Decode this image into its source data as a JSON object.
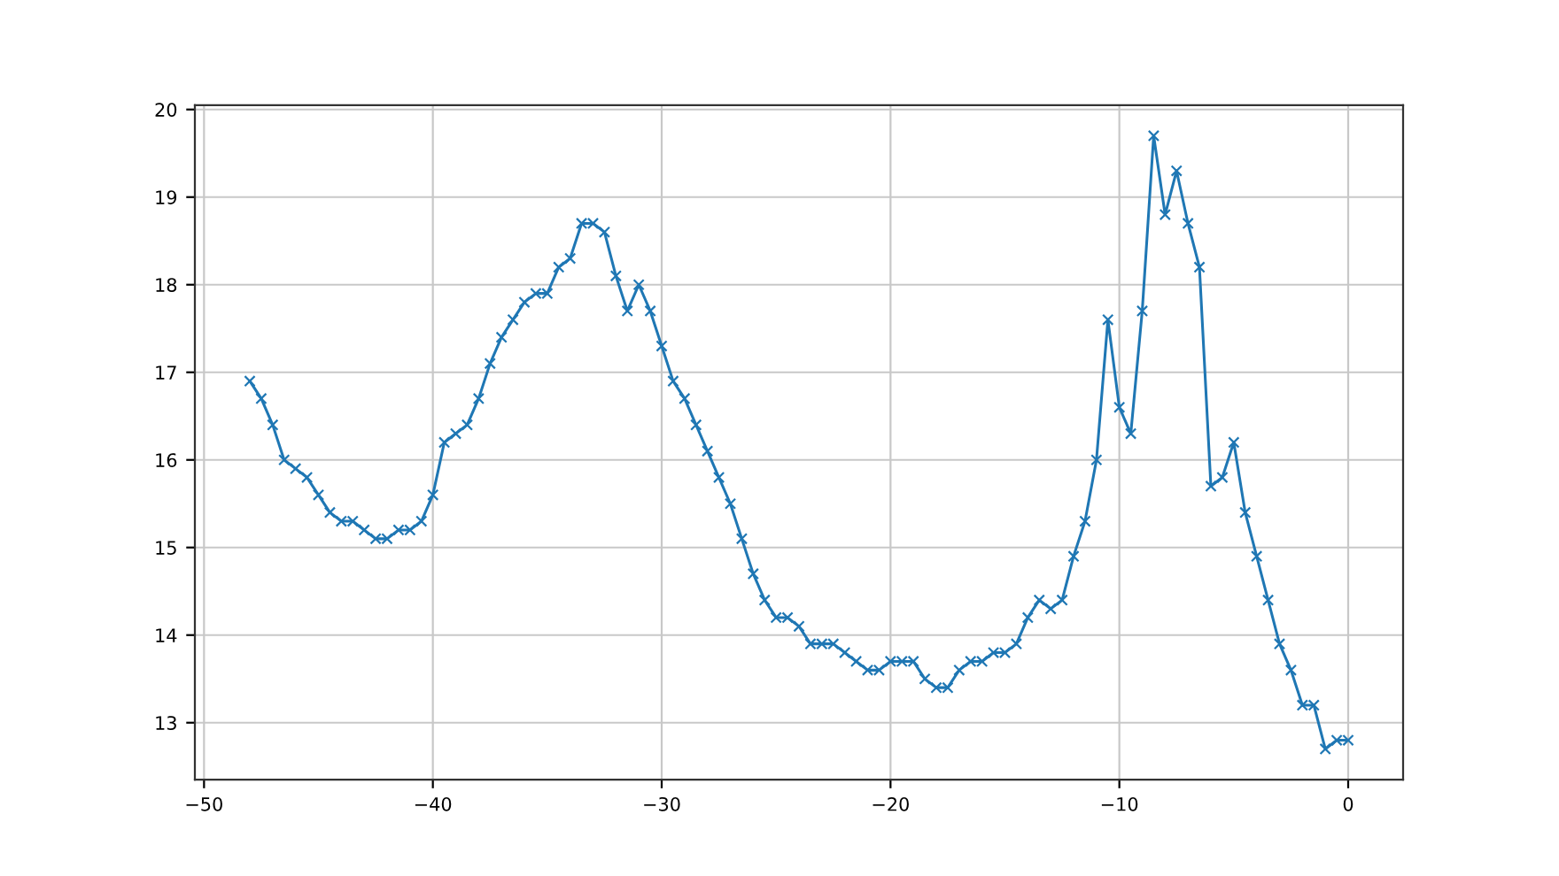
{
  "chart_data": {
    "type": "line",
    "x": [
      -48,
      -47.5,
      -47,
      -46.5,
      -46,
      -45.5,
      -45,
      -44.5,
      -44,
      -43.5,
      -43,
      -42.5,
      -42,
      -41.5,
      -41,
      -40.5,
      -40,
      -39.5,
      -39,
      -38.5,
      -38,
      -37.5,
      -37,
      -36.5,
      -36,
      -35.5,
      -35,
      -34.5,
      -34,
      -33.5,
      -33,
      -32.5,
      -32,
      -31.5,
      -31,
      -30.5,
      -30,
      -29.5,
      -29,
      -28.5,
      -28,
      -27.5,
      -27,
      -26.5,
      -26,
      -25.5,
      -25,
      -24.5,
      -24,
      -23.5,
      -23,
      -22.5,
      -22,
      -21.5,
      -21,
      -20.5,
      -20,
      -19.5,
      -19,
      -18.5,
      -18,
      -17.5,
      -17,
      -16.5,
      -16,
      -15.5,
      -15,
      -14.5,
      -14,
      -13.5,
      -13,
      -12.5,
      -12,
      -11.5,
      -11,
      -10.5,
      -10,
      -9.5,
      -9,
      -8.5,
      -8,
      -7.5,
      -7,
      -6.5,
      -6,
      -5.5,
      -5,
      -4.5,
      -4,
      -3.5,
      -3,
      -2.5,
      -2,
      -1.5,
      -1,
      -0.5,
      0
    ],
    "series": [
      {
        "color": "#1f77b4",
        "values": [
          16.9,
          16.7,
          16.4,
          16.0,
          15.9,
          15.8,
          15.6,
          15.4,
          15.3,
          15.3,
          15.2,
          15.1,
          15.1,
          15.2,
          15.2,
          15.3,
          15.6,
          16.2,
          16.3,
          16.4,
          16.7,
          17.1,
          17.4,
          17.6,
          17.8,
          17.9,
          17.9,
          18.2,
          18.3,
          18.7,
          18.7,
          18.6,
          18.1,
          17.7,
          18.0,
          17.7,
          17.3,
          16.9,
          16.7,
          16.4,
          16.1,
          15.8,
          15.5,
          15.1,
          14.7,
          14.4,
          14.2,
          14.2,
          14.1,
          13.9,
          13.9,
          13.9,
          13.8,
          13.7,
          13.6,
          13.6,
          13.7,
          13.7,
          13.7,
          13.5,
          13.4,
          13.4,
          13.6,
          13.7,
          13.7,
          13.8,
          13.8,
          13.9,
          14.2,
          14.4,
          14.3,
          14.4,
          14.9,
          15.3,
          16.0,
          17.6,
          16.6,
          16.3,
          17.7,
          19.7,
          18.8,
          19.3,
          18.7,
          18.2,
          15.7,
          15.8,
          16.2,
          15.4,
          14.9,
          14.4,
          13.9,
          13.6,
          13.2,
          13.2,
          12.7,
          12.8,
          12.8
        ]
      }
    ],
    "xlim": [
      -50.4,
      2.4
    ],
    "ylim": [
      12.35,
      20.05
    ],
    "xticks": [
      -50,
      -40,
      -30,
      -20,
      -10,
      0
    ],
    "yticks": [
      13,
      14,
      15,
      16,
      17,
      18,
      19,
      20
    ],
    "grid": true,
    "marker": "cross",
    "line_style": "solid"
  }
}
